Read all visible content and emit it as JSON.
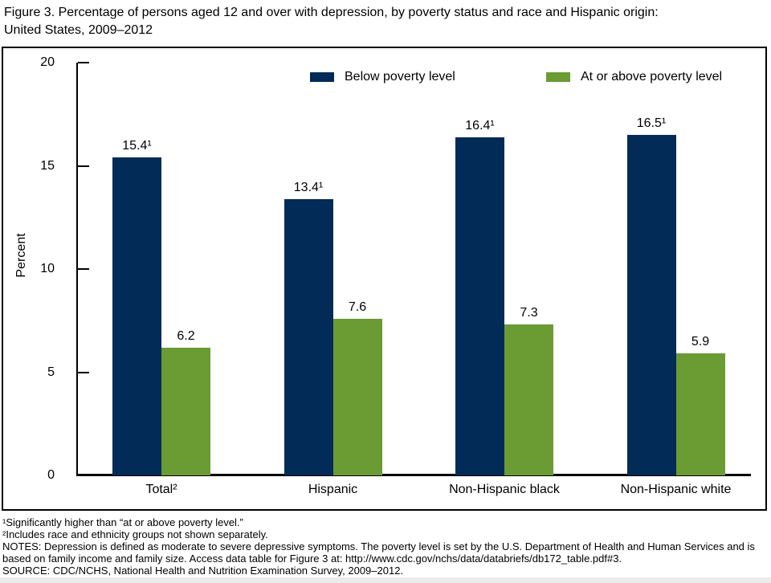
{
  "title": {
    "line1": "Figure 3. Percentage of persons aged 12 and over with depression, by poverty status and race and Hispanic origin:",
    "line2": "United States, 2009–2012"
  },
  "chart_data": {
    "type": "bar",
    "title": "Percentage of persons aged 12 and over with depression, by poverty status and race and Hispanic origin: United States, 2009–2012",
    "xlabel": "",
    "ylabel": "Percent",
    "ylim": [
      0,
      20
    ],
    "yticks": [
      0,
      5,
      10,
      15,
      20
    ],
    "grid": false,
    "legend_position": "top",
    "categories": [
      "Total²",
      "Hispanic",
      "Non-Hispanic black",
      "Non-Hispanic white"
    ],
    "series": [
      {
        "name": "Below poverty level",
        "color": "#022b57",
        "values": [
          15.4,
          13.4,
          16.4,
          16.5
        ],
        "value_labels": [
          "15.4¹",
          "13.4¹",
          "16.4¹",
          "16.5¹"
        ]
      },
      {
        "name": "At or above poverty level",
        "color": "#6b9b33",
        "values": [
          6.2,
          7.6,
          7.3,
          5.9
        ],
        "value_labels": [
          "6.2",
          "7.6",
          "7.3",
          "5.9"
        ]
      }
    ]
  },
  "footnotes": {
    "fn1": "¹Significantly higher than “at or above poverty level.”",
    "fn2": "²Includes race and ethnicity groups not shown separately.",
    "notes": "NOTES: Depression is defined as moderate to severe depressive symptoms. The poverty level is set by the U.S. Department of Health and Human Services and is based on family income and family size. Access data table for Figure 3 at: http://www.cdc.gov/nchs/data/databriefs/db172_table.pdf#3.",
    "source": "SOURCE: CDC/NCHS, National Health and Nutrition Examination Survey, 2009–2012."
  }
}
